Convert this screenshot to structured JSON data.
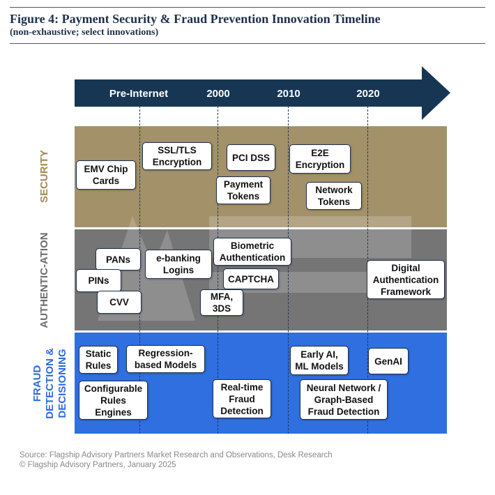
{
  "figure": {
    "title": "Figure 4: Payment Security & Fraud Prevention Innovation Timeline",
    "subtitle": "(non-exhaustive; select innovations)"
  },
  "timeline": {
    "periods": [
      "Pre-Internet",
      "2000",
      "2010",
      "2020"
    ],
    "arrow_color": "#163654"
  },
  "rows": {
    "security": {
      "label": "SECURITY",
      "color": "#a3916a",
      "label_color": "#9e8a55"
    },
    "authentication": {
      "label": "AUTHENTIC-ATION",
      "color": "#757575",
      "label_color": "#6c6c6c"
    },
    "fraud": {
      "label": "FRAUD\nDETECTION &\nDECISIONING",
      "color": "#2f6fe0",
      "label_color": "#2d6ae0"
    }
  },
  "innovations": {
    "emv": "EMV Chip\nCards",
    "ssl": "SSL/TLS\nEncryption",
    "pcidss": "PCI DSS",
    "tokens": "Payment\nTokens",
    "e2e": "E2E\nEncryption",
    "network_tokens": "Network\nTokens",
    "pans": "PANs",
    "pins": "PINs",
    "cvv": "CVV",
    "ebanking": "e-banking\nLogins",
    "biometric": "Biometric\nAuthentication",
    "captcha": "CAPTCHA",
    "mfa": "MFA,\n3DS",
    "digital_auth": "Digital\nAuthentication\nFramework",
    "static_rules": "Static\nRules",
    "regression": "Regression-\nbased Models",
    "configurable": "Configurable\nRules\nEngines",
    "realtime": "Real-time\nFraud\nDetection",
    "early_ai": "Early AI,\nML Models",
    "genai": "GenAI",
    "neural": "Neural Network /\nGraph-Based\nFraud Detection"
  },
  "footer": {
    "source": "Source: Flagship Advisory Partners Market Research and Observations, Desk Research",
    "copyright": "© Flagship Advisory Partners, January 2025"
  }
}
